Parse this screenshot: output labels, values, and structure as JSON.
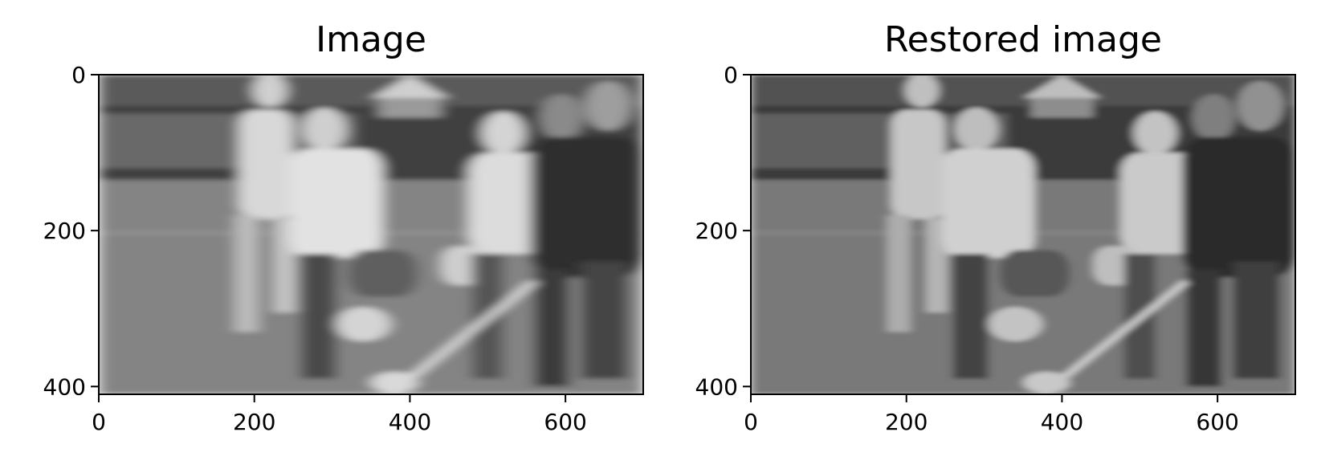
{
  "chart_data": [
    {
      "type": "image",
      "title": "Image",
      "xlim": [
        0,
        700
      ],
      "ylim": [
        410,
        0
      ],
      "xticks": [
        0,
        200,
        400,
        600
      ],
      "yticks": [
        0,
        200,
        400
      ],
      "xtick_labels": [
        "0",
        "200",
        "400",
        "600"
      ],
      "ytick_labels": [
        "0",
        "200",
        "400"
      ],
      "colormap": "gray",
      "content": "motion-blurred grayscale photo of lacrosse players"
    },
    {
      "type": "image",
      "title": "Restored image",
      "xlim": [
        0,
        700
      ],
      "ylim": [
        410,
        0
      ],
      "xticks": [
        0,
        200,
        400,
        600
      ],
      "yticks": [
        0,
        200,
        400
      ],
      "xtick_labels": [
        "0",
        "200",
        "400",
        "600"
      ],
      "ytick_labels": [
        "0",
        "200",
        "400"
      ],
      "colormap": "gray",
      "content": "restored grayscale photo of lacrosse players"
    }
  ]
}
